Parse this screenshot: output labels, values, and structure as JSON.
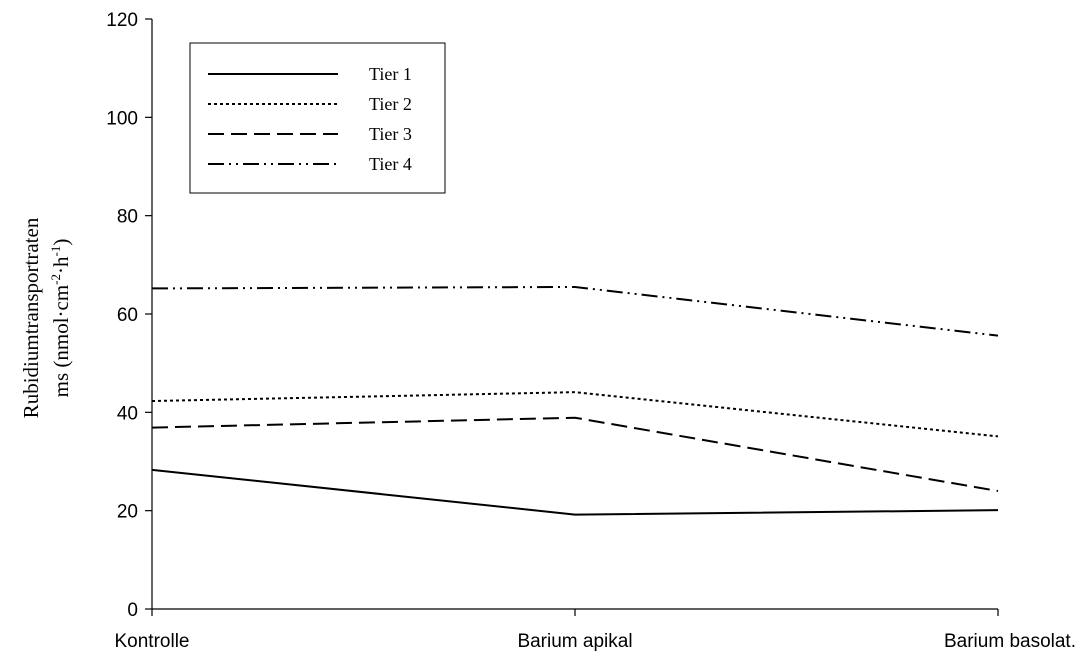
{
  "chart_data": {
    "type": "line",
    "categories": [
      "Kontrolle",
      "Barium apikal",
      "Barium basolat."
    ],
    "series": [
      {
        "name": "Tier 1",
        "values": [
          28.3,
          19.2,
          20.1
        ],
        "dash": "solid"
      },
      {
        "name": "Tier 2",
        "values": [
          42.3,
          44.1,
          35.1
        ],
        "dash": "dotted"
      },
      {
        "name": "Tier 3",
        "values": [
          36.9,
          38.9,
          24.0
        ],
        "dash": "dashed"
      },
      {
        "name": "Tier 4",
        "values": [
          65.2,
          65.5,
          55.6
        ],
        "dash": "dashdotdot"
      }
    ],
    "ylim": [
      0,
      120
    ],
    "yticks": [
      0,
      20,
      40,
      60,
      80,
      100,
      120
    ],
    "ylabel_line1": "Rubidiumtransportraten",
    "ylabel_line2": "ms (nmol·cm",
    "ylabel_sup1": "-2",
    "ylabel_mid": "·h",
    "ylabel_sup2": "-1",
    "ylabel_end": ")",
    "xlabel": "",
    "grid": false,
    "legend_position": "top-left",
    "line_color": "#000000"
  }
}
